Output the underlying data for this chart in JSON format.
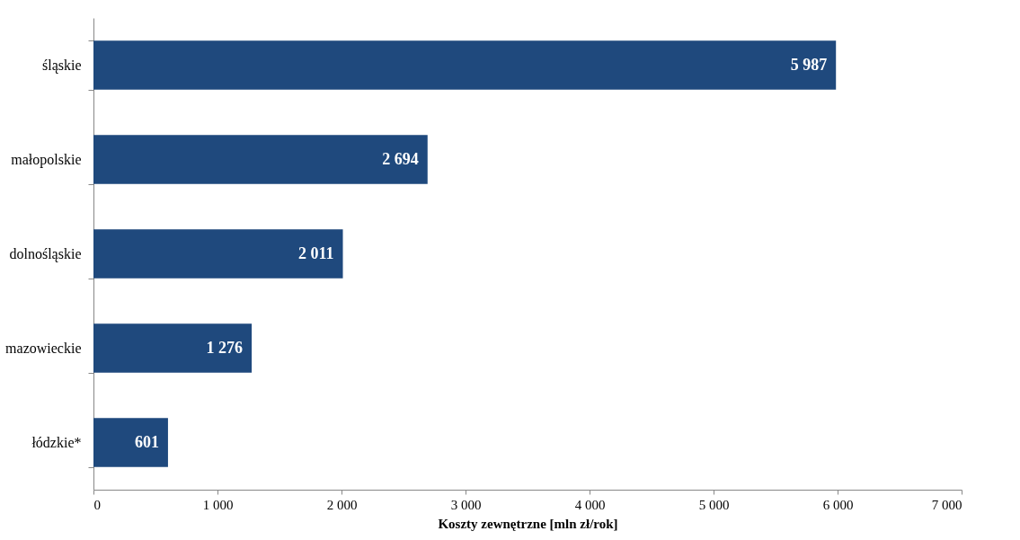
{
  "chart_data": {
    "type": "bar",
    "orientation": "horizontal",
    "xlabel": "Koszty zewnętrzne [mln zł/rok]",
    "categories": [
      "śląskie",
      "małopolskie",
      "dolnośląskie",
      "mazowieckie",
      "łódzkie*"
    ],
    "values": [
      5987,
      2694,
      2011,
      1276,
      601
    ],
    "value_labels": [
      "5 987",
      "2 694",
      "2 011",
      "1 276",
      "601"
    ],
    "color": "#1f497d",
    "xlim": [
      0,
      7000
    ],
    "xticks": [
      0,
      {
        "value": 1000,
        "label": "1 000"
      },
      {
        "value": 2000,
        "label": "2 000"
      },
      {
        "value": 3000,
        "label": "3 000"
      },
      {
        "value": 4000,
        "label": "4 000"
      },
      {
        "value": 5000,
        "label": "5 000"
      },
      {
        "value": 6000,
        "label": "6 000"
      },
      {
        "value": 7000,
        "label": "7 000"
      }
    ],
    "grid": false
  }
}
